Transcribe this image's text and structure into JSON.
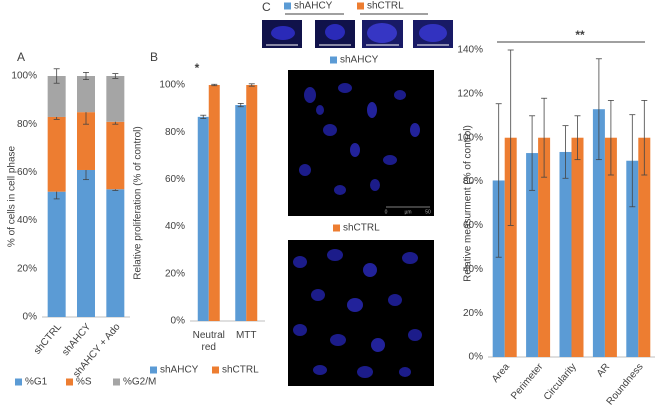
{
  "chart_data": [
    {
      "type": "stacked_bar",
      "panel": "A",
      "y_label": "% of cells in cell phase",
      "categories": [
        "shCTRL",
        "shAHCY",
        "shAHCY + Ado"
      ],
      "series": [
        {
          "name": "%G1",
          "color": "#5b9bd5",
          "values": [
            52,
            61,
            53
          ],
          "errors": [
            3,
            4,
            0.5
          ]
        },
        {
          "name": "%S",
          "color": "#ed7d31",
          "values": [
            31,
            24,
            28
          ],
          "errors": [
            1,
            5,
            1
          ]
        },
        {
          "name": "%G2/M",
          "color": "#a5a5a5",
          "values": [
            17,
            15,
            19
          ],
          "errors": [
            3,
            1.5,
            1
          ]
        }
      ],
      "ylim": [
        0,
        100
      ],
      "yticks": [
        {
          "value": 0,
          "label": "0%"
        },
        {
          "value": 20,
          "label": "20%"
        },
        {
          "value": 40,
          "label": "40%"
        },
        {
          "value": 60,
          "label": "60%"
        },
        {
          "value": 80,
          "label": "80%"
        },
        {
          "value": 100,
          "label": "100%"
        }
      ]
    },
    {
      "type": "bar",
      "panel": "B",
      "y_label": "Relative proliferation (% of control)",
      "annotation": "*",
      "categories": [
        "Neutral red",
        "MTT"
      ],
      "series": [
        {
          "name": "shAHCY",
          "color": "#5b9bd5",
          "values": [
            86.5,
            91.5
          ],
          "errors": [
            0.7,
            0.7
          ]
        },
        {
          "name": "shCTRL",
          "color": "#ed7d31",
          "values": [
            100,
            100
          ],
          "errors": [
            0.3,
            0.5
          ]
        }
      ],
      "ylim": [
        0,
        100
      ],
      "yticks": [
        {
          "value": 0,
          "label": "0%"
        },
        {
          "value": 20,
          "label": "20%"
        },
        {
          "value": 40,
          "label": "40%"
        },
        {
          "value": 60,
          "label": "60%"
        },
        {
          "value": 80,
          "label": "80%"
        },
        {
          "value": 100,
          "label": "100%"
        }
      ]
    },
    {
      "type": "bar",
      "panel": "C",
      "y_label": "Relative measurment (% of control)",
      "annotation": "**",
      "micrographs": {
        "labels": [
          "shAHCY",
          "shCTRL"
        ],
        "scale_bar": [
          "0",
          "µm",
          "50"
        ]
      },
      "categories": [
        "Area",
        "Perimeter",
        "Circularity",
        "AR",
        "Roundness"
      ],
      "series": [
        {
          "name": "shAHCY",
          "color": "#5b9bd5",
          "values": [
            80.5,
            93,
            93.5,
            113,
            89.5
          ],
          "errors": [
            35,
            17,
            12,
            23,
            21
          ]
        },
        {
          "name": "shCTRL",
          "color": "#ed7d31",
          "values": [
            100,
            100,
            100,
            100,
            100
          ],
          "errors": [
            40,
            18,
            10,
            17,
            17
          ]
        }
      ],
      "ylim": [
        0,
        140
      ],
      "yticks": [
        {
          "value": 0,
          "label": "0%"
        },
        {
          "value": 20,
          "label": "20%"
        },
        {
          "value": 40,
          "label": "40%"
        },
        {
          "value": 60,
          "label": "60%"
        },
        {
          "value": 80,
          "label": "80%"
        },
        {
          "value": 100,
          "label": "100%"
        },
        {
          "value": 120,
          "label": "120%"
        },
        {
          "value": 140,
          "label": "140%"
        }
      ]
    }
  ]
}
